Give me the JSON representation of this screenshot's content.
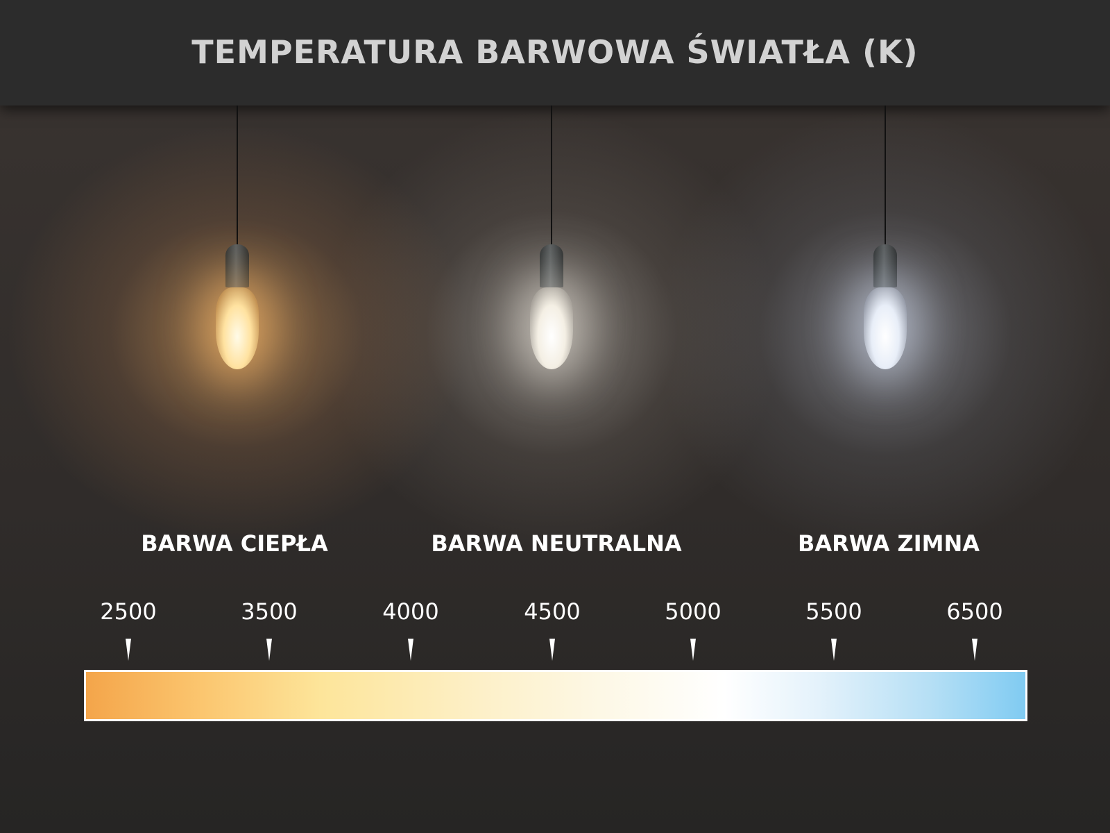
{
  "title": "TEMPERATURA BARWOWA ŚWIATŁA (K)",
  "categories": [
    {
      "label": "BARWA CIEPŁA",
      "light_color": "#ffd9a0"
    },
    {
      "label": "BARWA NEUTRALNA",
      "light_color": "#f4efe4"
    },
    {
      "label": "BARWA ZIMNA",
      "light_color": "#e8eef8"
    }
  ],
  "scale": {
    "ticks": [
      "2500",
      "3500",
      "4000",
      "4500",
      "5000",
      "5500",
      "6500"
    ],
    "gradient_start": "#f4a54a",
    "gradient_mid": "#ffffff",
    "gradient_end": "#80cbf2"
  }
}
